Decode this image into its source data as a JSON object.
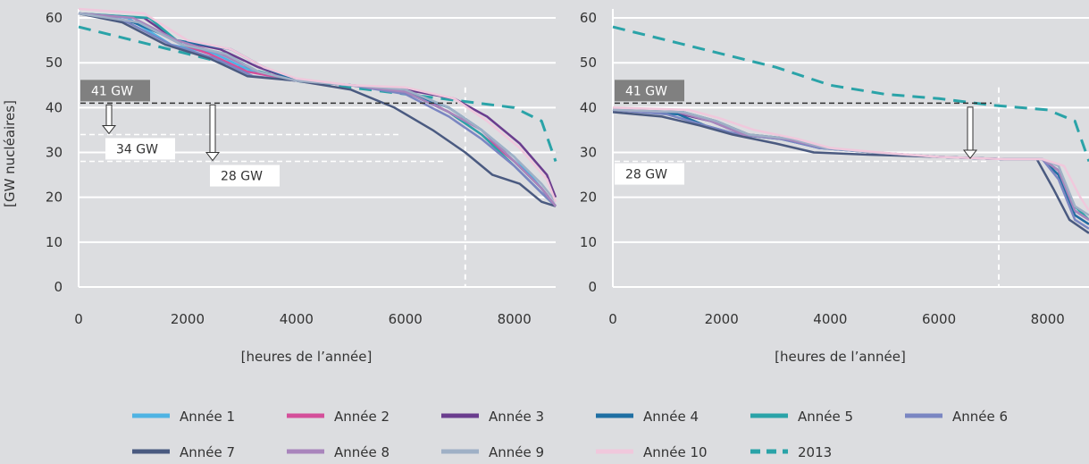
{
  "ylabel": "[GW nucléaires]",
  "legend": [
    {
      "name": "Année 1",
      "color": "#4fb3e3",
      "dash": false
    },
    {
      "name": "Année 2",
      "color": "#d44f9a",
      "dash": false
    },
    {
      "name": "Année 3",
      "color": "#6a3d8e",
      "dash": false
    },
    {
      "name": "Année 4",
      "color": "#1f6fa3",
      "dash": false
    },
    {
      "name": "Année 5",
      "color": "#2aa3a8",
      "dash": false
    },
    {
      "name": "Année 6",
      "color": "#7a86c2",
      "dash": false
    },
    {
      "name": "Année 7",
      "color": "#4a5a80",
      "dash": false
    },
    {
      "name": "Année 8",
      "color": "#a985bc",
      "dash": false
    },
    {
      "name": "Année 9",
      "color": "#9fb0c6",
      "dash": false
    },
    {
      "name": "Année 10",
      "color": "#f0c8dc",
      "dash": false
    },
    {
      "name": "2013",
      "color": "#2aa3a8",
      "dash": true
    }
  ],
  "chart_data": [
    {
      "type": "line",
      "xlabel": "[heures de l’année]",
      "xlim": [
        0,
        8760
      ],
      "ylim": [
        0,
        62
      ],
      "xticks": [
        0,
        2000,
        4000,
        6000,
        8000
      ],
      "yticks": [
        0,
        10,
        20,
        30,
        40,
        50,
        60
      ],
      "grid": true,
      "vline_x": 7100,
      "annotations": [
        {
          "label": "41 GW",
          "value": 41,
          "style": "dark"
        },
        {
          "label": "34 GW",
          "value": 34,
          "style": "white"
        },
        {
          "label": "28 GW",
          "value": 28,
          "style": "white"
        }
      ],
      "series": [
        {
          "name": "2013",
          "x": [
            0,
            1000,
            2000,
            3000,
            4000,
            5000,
            6000,
            7000,
            8000,
            8500,
            8760
          ],
          "y": [
            58,
            55,
            52,
            49,
            46,
            44.5,
            43,
            41.5,
            40,
            37,
            28
          ]
        },
        {
          "name": "Année 1",
          "x": [
            0,
            900,
            1700,
            2500,
            3200,
            4000,
            5000,
            6000,
            6800,
            7400,
            8000,
            8500,
            8760
          ],
          "y": [
            61,
            60,
            54,
            52,
            48,
            46,
            45,
            44,
            40,
            35,
            29,
            22,
            18
          ]
        },
        {
          "name": "Année 2",
          "x": [
            0,
            1100,
            1900,
            2400,
            3100,
            4000,
            5000,
            6000,
            6800,
            7400,
            8000,
            8500,
            8760
          ],
          "y": [
            61,
            59,
            54,
            52,
            48,
            46,
            45,
            44,
            39,
            34,
            28,
            22,
            18
          ]
        },
        {
          "name": "Année 3",
          "x": [
            0,
            1200,
            1800,
            2600,
            3300,
            4000,
            5000,
            6000,
            6900,
            7500,
            8100,
            8600,
            8760
          ],
          "y": [
            61,
            60,
            55,
            53,
            49,
            46,
            45,
            44,
            42,
            38,
            32,
            25,
            20
          ]
        },
        {
          "name": "Année 4",
          "x": [
            0,
            1000,
            1800,
            2800,
            3400,
            4000,
            5000,
            6000,
            6800,
            7400,
            8000,
            8500,
            8760
          ],
          "y": [
            61,
            59,
            55,
            53,
            49,
            46,
            45,
            43.5,
            40,
            35,
            28,
            22,
            18
          ]
        },
        {
          "name": "Année 5",
          "x": [
            0,
            1300,
            1900,
            2700,
            3300,
            4000,
            5000,
            6000,
            6800,
            7400,
            8000,
            8500,
            8760
          ],
          "y": [
            61,
            60,
            54,
            52,
            48,
            46,
            45,
            43.5,
            39,
            34,
            27,
            21,
            18
          ]
        },
        {
          "name": "Année 6",
          "x": [
            0,
            900,
            1700,
            2500,
            3200,
            4000,
            5000,
            6000,
            6800,
            7400,
            8000,
            8500,
            8760
          ],
          "y": [
            61,
            59,
            54,
            51,
            47,
            46,
            45,
            43,
            38,
            33,
            27,
            21,
            18
          ]
        },
        {
          "name": "Année 7",
          "x": [
            0,
            800,
            1600,
            2400,
            3100,
            4000,
            5000,
            5800,
            6500,
            7100,
            7600,
            8100,
            8500,
            8760
          ],
          "y": [
            61,
            59,
            54,
            51,
            47,
            46,
            44,
            40,
            35,
            30,
            25,
            23,
            19,
            18
          ]
        },
        {
          "name": "Année 8",
          "x": [
            0,
            1000,
            1800,
            2600,
            3300,
            4000,
            5000,
            6000,
            6800,
            7400,
            8000,
            8500,
            8760
          ],
          "y": [
            61,
            60,
            55,
            52,
            48,
            46,
            45,
            43.5,
            39,
            35,
            28,
            22,
            18
          ]
        },
        {
          "name": "Année 9",
          "x": [
            0,
            1100,
            1900,
            2700,
            3300,
            4000,
            5000,
            6000,
            6800,
            7400,
            8000,
            8500,
            8760
          ],
          "y": [
            61,
            59,
            54,
            52,
            48,
            46,
            45,
            44,
            40,
            35,
            29,
            23,
            19
          ]
        },
        {
          "name": "Année 10",
          "x": [
            0,
            1200,
            2000,
            2800,
            3400,
            4000,
            5000,
            6000,
            6900,
            7500,
            8100,
            8600,
            8760
          ],
          "y": [
            62,
            61,
            55,
            53,
            49,
            46.5,
            45,
            44.5,
            42,
            37,
            31,
            24,
            19
          ]
        }
      ]
    },
    {
      "type": "line",
      "xlabel": "[heures de l’année]",
      "xlim": [
        0,
        8760
      ],
      "ylim": [
        0,
        62
      ],
      "xticks": [
        0,
        2000,
        4000,
        6000,
        8000
      ],
      "yticks": [
        0,
        10,
        20,
        30,
        40,
        50,
        60
      ],
      "grid": true,
      "vline_x": 7100,
      "annotations": [
        {
          "label": "41 GW",
          "value": 41,
          "style": "dark"
        },
        {
          "label": "28 GW",
          "value": 28,
          "style": "white"
        }
      ],
      "series": [
        {
          "name": "2013",
          "x": [
            0,
            1000,
            2000,
            3000,
            4000,
            5000,
            6000,
            7000,
            8000,
            8500,
            8760
          ],
          "y": [
            58,
            55,
            52,
            49,
            45,
            43,
            42,
            40.5,
            39.5,
            37,
            28
          ]
        },
        {
          "name": "Année 1",
          "x": [
            0,
            1200,
            1800,
            2400,
            3200,
            3800,
            4800,
            6000,
            7200,
            7900,
            8200,
            8500,
            8760
          ],
          "y": [
            39.5,
            39,
            37,
            34,
            33,
            31,
            30,
            29,
            28.5,
            28.5,
            26,
            17,
            15
          ]
        },
        {
          "name": "Année 2",
          "x": [
            0,
            1300,
            1900,
            2500,
            3300,
            3900,
            4800,
            6000,
            7200,
            7900,
            8200,
            8500,
            8760
          ],
          "y": [
            39.5,
            39,
            37,
            34,
            33,
            31,
            30,
            29,
            28.5,
            28.5,
            25,
            16,
            14
          ]
        },
        {
          "name": "Année 3",
          "x": [
            0,
            1100,
            1800,
            2400,
            3300,
            3900,
            4800,
            6000,
            7200,
            7900,
            8200,
            8500,
            8760
          ],
          "y": [
            39.5,
            39,
            37,
            34,
            33,
            31,
            30,
            29,
            28.5,
            28.5,
            26,
            17,
            15
          ]
        },
        {
          "name": "Année 4",
          "x": [
            0,
            1200,
            1700,
            2300,
            3100,
            3800,
            4800,
            6000,
            7200,
            7900,
            8200,
            8500,
            8760
          ],
          "y": [
            39.5,
            38.5,
            36,
            34,
            33,
            31,
            30,
            29,
            28.5,
            28.5,
            25,
            16,
            14
          ]
        },
        {
          "name": "Année 5",
          "x": [
            0,
            1300,
            1900,
            2500,
            3300,
            3900,
            4800,
            6000,
            7200,
            7900,
            8200,
            8500,
            8760
          ],
          "y": [
            39.5,
            39,
            37,
            34,
            33,
            31,
            30,
            29,
            28.5,
            28.5,
            26,
            18,
            15
          ]
        },
        {
          "name": "Année 6",
          "x": [
            0,
            1000,
            1700,
            2300,
            3100,
            3800,
            4800,
            6000,
            7200,
            7900,
            8200,
            8500,
            8760
          ],
          "y": [
            39.5,
            38.5,
            36,
            34,
            33,
            31,
            30,
            29,
            28.5,
            28.5,
            24,
            15,
            13
          ]
        },
        {
          "name": "Année 7",
          "x": [
            0,
            900,
            1600,
            2200,
            3000,
            3700,
            4700,
            6000,
            7200,
            7800,
            8100,
            8400,
            8760
          ],
          "y": [
            39,
            38,
            36,
            34,
            32,
            30,
            29.5,
            29,
            28.5,
            28.5,
            22,
            15,
            12
          ]
        },
        {
          "name": "Année 8",
          "x": [
            0,
            1200,
            1800,
            2400,
            3200,
            3900,
            4800,
            6000,
            7200,
            7900,
            8200,
            8500,
            8760
          ],
          "y": [
            39.5,
            39,
            37,
            34,
            33,
            31,
            30,
            29,
            28.5,
            28.5,
            26,
            17,
            15
          ]
        },
        {
          "name": "Année 9",
          "x": [
            0,
            1300,
            1900,
            2500,
            3300,
            3900,
            4800,
            6000,
            7200,
            7900,
            8200,
            8500,
            8760
          ],
          "y": [
            39.5,
            39,
            37,
            34,
            33,
            31,
            30,
            29,
            28.5,
            28.5,
            27,
            18,
            16
          ]
        },
        {
          "name": "Année 10",
          "x": [
            0,
            1400,
            2000,
            2600,
            3400,
            4000,
            4900,
            6000,
            7200,
            7900,
            8300,
            8600,
            8760
          ],
          "y": [
            40,
            39.5,
            37.5,
            35,
            33,
            31,
            30,
            29,
            28.5,
            28.5,
            27,
            20,
            17
          ]
        }
      ]
    }
  ]
}
